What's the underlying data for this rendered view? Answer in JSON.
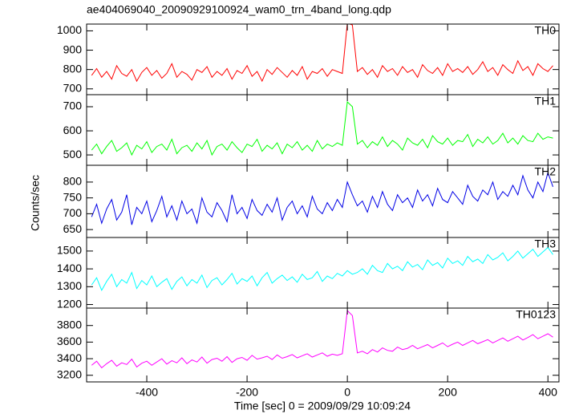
{
  "chart_data": {
    "type": "line",
    "title": "ae404069040_20090929100924_wam0_trn_4band_long.qdp",
    "xlabel": "Time [sec] 0 = 2009/09/29 10:09:24",
    "ylabel": "Counts/sec",
    "xlim": [
      -520,
      422
    ],
    "xticks": [
      -400,
      -200,
      0,
      200,
      400
    ],
    "x": [
      -510,
      -500,
      -490,
      -480,
      -470,
      -460,
      -450,
      -440,
      -430,
      -420,
      -410,
      -400,
      -390,
      -380,
      -370,
      -360,
      -350,
      -340,
      -330,
      -320,
      -310,
      -300,
      -290,
      -280,
      -270,
      -260,
      -250,
      -240,
      -230,
      -220,
      -210,
      -200,
      -190,
      -180,
      -170,
      -160,
      -150,
      -140,
      -130,
      -120,
      -110,
      -100,
      -90,
      -80,
      -70,
      -60,
      -50,
      -40,
      -30,
      -20,
      -10,
      0,
      10,
      20,
      30,
      40,
      50,
      60,
      70,
      80,
      90,
      100,
      110,
      120,
      130,
      140,
      150,
      160,
      170,
      180,
      190,
      200,
      210,
      220,
      230,
      240,
      250,
      260,
      270,
      280,
      290,
      300,
      310,
      320,
      330,
      340,
      350,
      360,
      370,
      380,
      390,
      400,
      410
    ],
    "series": [
      {
        "name": "TH0",
        "color": "#ff0000",
        "ylim": [
          670,
          1035
        ],
        "yticks": [
          700,
          800,
          900,
          1000
        ],
        "values": [
          770,
          805,
          760,
          790,
          750,
          820,
          780,
          765,
          800,
          740,
          785,
          810,
          770,
          795,
          755,
          780,
          830,
          760,
          790,
          775,
          745,
          800,
          785,
          815,
          760,
          790,
          770,
          805,
          750,
          795,
          780,
          820,
          765,
          790,
          740,
          800,
          775,
          810,
          785,
          760,
          795,
          770,
          815,
          750,
          790,
          780,
          805,
          765,
          800,
          790,
          780,
          1040,
          1030,
          790,
          810,
          775,
          800,
          760,
          820,
          790,
          805,
          770,
          815,
          785,
          800,
          760,
          825,
          795,
          780,
          810,
          770,
          830,
          790,
          805,
          785,
          815,
          775,
          800,
          840,
          790,
          810,
          770,
          825,
          800,
          780,
          845,
          795,
          815,
          770,
          830,
          805,
          790,
          820
        ]
      },
      {
        "name": "TH1",
        "color": "#00ff00",
        "ylim": [
          457,
          750
        ],
        "yticks": [
          500,
          600,
          700
        ],
        "values": [
          520,
          545,
          505,
          535,
          560,
          515,
          530,
          550,
          500,
          540,
          525,
          555,
          510,
          535,
          545,
          520,
          565,
          505,
          530,
          540,
          515,
          550,
          525,
          560,
          500,
          535,
          545,
          520,
          555,
          530,
          510,
          545,
          535,
          565,
          515,
          540,
          525,
          550,
          505,
          545,
          530,
          555,
          520,
          540,
          515,
          560,
          525,
          545,
          535,
          550,
          540,
          720,
          700,
          545,
          560,
          530,
          555,
          540,
          575,
          535,
          560,
          545,
          520,
          570,
          550,
          540,
          565,
          530,
          580,
          555,
          545,
          570,
          540,
          560,
          555,
          585,
          535,
          565,
          550,
          575,
          545,
          560,
          590,
          550,
          570,
          545,
          580,
          560,
          555,
          590,
          565,
          575,
          570
        ]
      },
      {
        "name": "TH2",
        "color": "#0000e6",
        "ylim": [
          625,
          853
        ],
        "yticks": [
          650,
          700,
          750,
          800
        ],
        "values": [
          690,
          730,
          670,
          715,
          745,
          680,
          705,
          760,
          665,
          720,
          700,
          740,
          675,
          710,
          755,
          690,
          725,
          680,
          740,
          700,
          715,
          670,
          750,
          705,
          690,
          735,
          710,
          675,
          760,
          700,
          720,
          685,
          745,
          710,
          695,
          730,
          705,
          750,
          680,
          720,
          740,
          700,
          725,
          690,
          755,
          715,
          700,
          735,
          710,
          745,
          720,
          800,
          760,
          725,
          740,
          705,
          755,
          720,
          770,
          730,
          710,
          760,
          735,
          750,
          720,
          775,
          740,
          760,
          725,
          780,
          745,
          735,
          770,
          750,
          730,
          790,
          755,
          740,
          775,
          760,
          800,
          745,
          770,
          755,
          790,
          760,
          820,
          775,
          750,
          800,
          770,
          830,
          785
        ]
      },
      {
        "name": "TH3",
        "color": "#00ffff",
        "ylim": [
          1180,
          1576
        ],
        "yticks": [
          1200,
          1300,
          1400,
          1500
        ],
        "values": [
          1310,
          1350,
          1280,
          1330,
          1370,
          1300,
          1340,
          1320,
          1380,
          1290,
          1335,
          1310,
          1360,
          1300,
          1325,
          1345,
          1285,
          1330,
          1355,
          1305,
          1340,
          1320,
          1365,
          1295,
          1335,
          1350,
          1310,
          1340,
          1375,
          1315,
          1345,
          1330,
          1360,
          1305,
          1350,
          1380,
          1320,
          1345,
          1365,
          1335,
          1355,
          1325,
          1370,
          1340,
          1350,
          1385,
          1330,
          1360,
          1345,
          1375,
          1360,
          1390,
          1370,
          1380,
          1400,
          1370,
          1420,
          1390,
          1380,
          1430,
          1400,
          1415,
          1390,
          1440,
          1410,
          1425,
          1395,
          1450,
          1420,
          1435,
          1405,
          1460,
          1430,
          1445,
          1420,
          1470,
          1440,
          1455,
          1430,
          1480,
          1450,
          1465,
          1490,
          1445,
          1470,
          1500,
          1460,
          1485,
          1510,
          1470,
          1495,
          1520,
          1480
        ]
      },
      {
        "name": "TH0123",
        "color": "#ff00ff",
        "ylim": [
          3120,
          4010
        ],
        "yticks": [
          3200,
          3400,
          3600,
          3800
        ],
        "values": [
          3320,
          3370,
          3290,
          3340,
          3380,
          3310,
          3350,
          3330,
          3395,
          3300,
          3345,
          3370,
          3320,
          3360,
          3400,
          3335,
          3375,
          3350,
          3410,
          3340,
          3385,
          3360,
          3420,
          3345,
          3390,
          3405,
          3370,
          3425,
          3355,
          3400,
          3415,
          3380,
          3440,
          3395,
          3410,
          3430,
          3390,
          3445,
          3405,
          3425,
          3450,
          3410,
          3435,
          3460,
          3420,
          3445,
          3470,
          3430,
          3455,
          3440,
          3460,
          3980,
          3920,
          3470,
          3490,
          3460,
          3510,
          3480,
          3530,
          3500,
          3490,
          3540,
          3510,
          3525,
          3560,
          3520,
          3545,
          3570,
          3530,
          3560,
          3590,
          3545,
          3575,
          3600,
          3560,
          3590,
          3620,
          3580,
          3605,
          3630,
          3590,
          3620,
          3650,
          3610,
          3640,
          3670,
          3625,
          3655,
          3690,
          3640,
          3670,
          3700,
          3660
        ]
      }
    ]
  }
}
